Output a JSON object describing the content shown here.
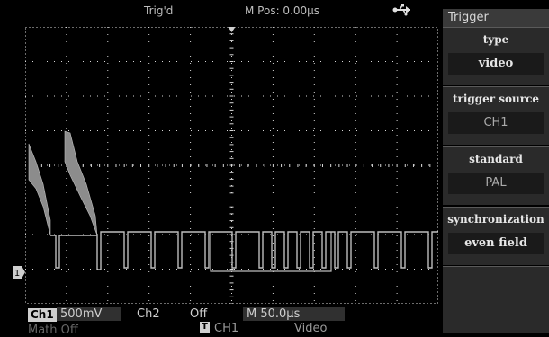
{
  "status": {
    "trigger_state": "Trig'd",
    "mpos": "M Pos: 0.00µs",
    "mode": "Trigger"
  },
  "menu": {
    "title": "Trigger",
    "items": [
      {
        "label": "type",
        "value": "video"
      },
      {
        "label": "trigger source",
        "value": "CH1"
      },
      {
        "label": "standard",
        "value": "PAL"
      },
      {
        "label": "synchronization",
        "value": "even field"
      }
    ]
  },
  "bottom": {
    "ch1_label": "Ch1",
    "ch1_scale": "500mV",
    "ch2_label": "Ch2",
    "ch2_state": "Off",
    "timebase": "M 50.0µs",
    "math": "Math Off",
    "trig_source": "CH1",
    "trig_type": "Video"
  },
  "marker": {
    "ch1": "1",
    "trig": "T"
  },
  "colors": {
    "waveform": "#bdbdbd",
    "grid": "#d8d8d8",
    "menu_bg": "#2a2a2a"
  }
}
